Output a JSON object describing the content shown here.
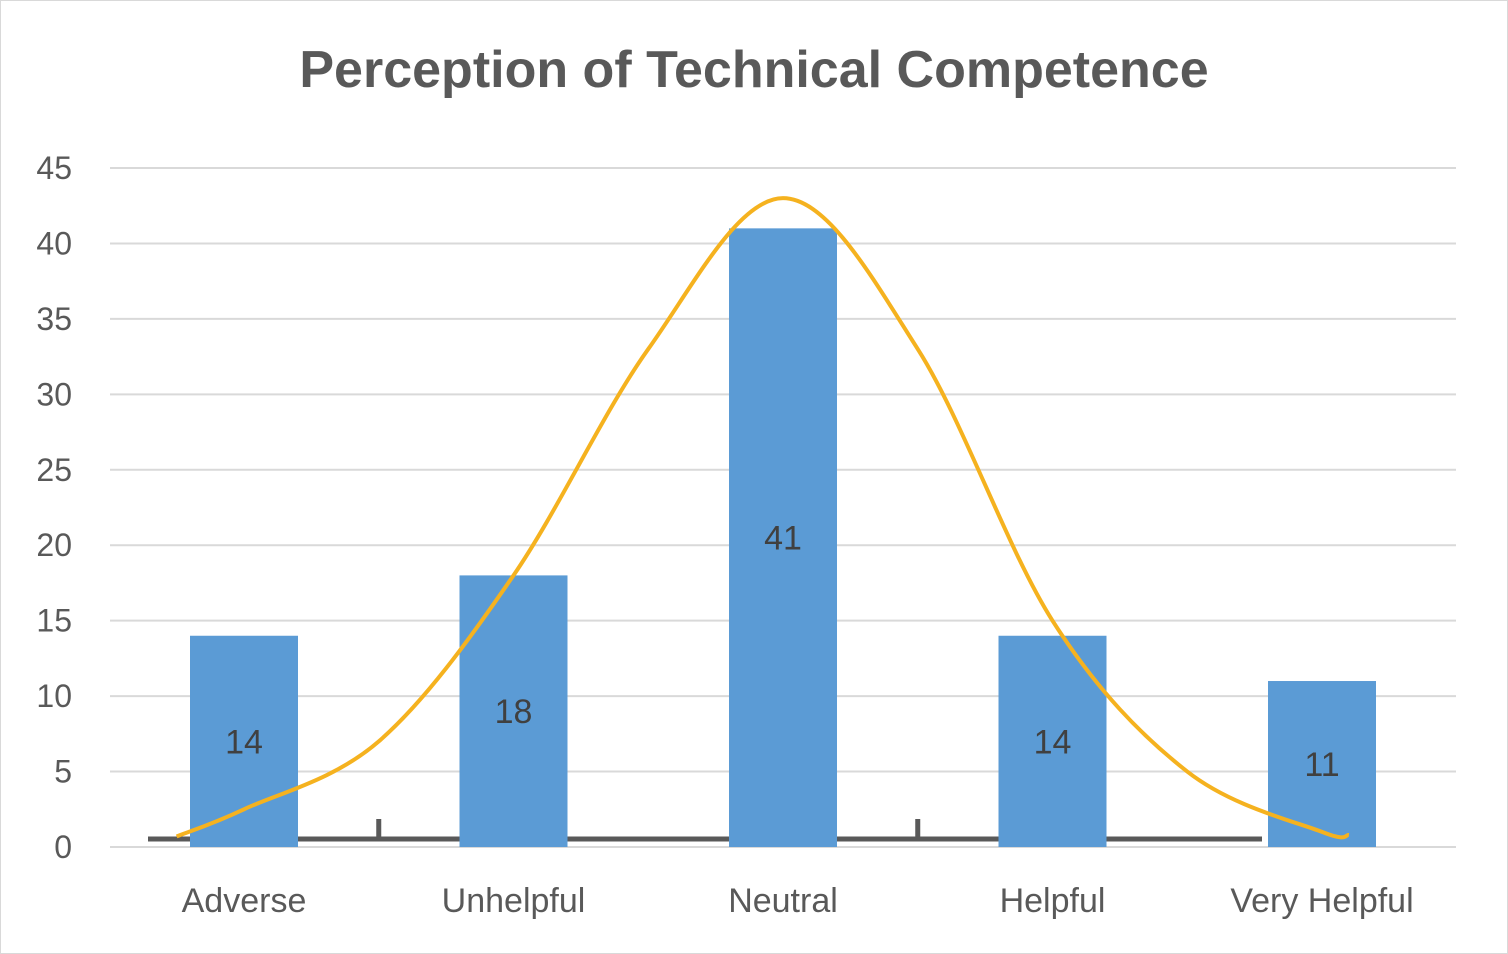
{
  "chart_data": {
    "type": "bar",
    "title": "Perception of Technical Competence",
    "categories": [
      "Adverse",
      "Unhelpful",
      "Neutral",
      "Helpful",
      "Very Helpful"
    ],
    "values": [
      14,
      18,
      41,
      14,
      11
    ],
    "yticks": [
      "0",
      "5",
      "10",
      "15",
      "20",
      "25",
      "30",
      "35",
      "40",
      "45"
    ],
    "ylim": [
      0,
      45
    ],
    "grid": true,
    "legend": "none",
    "bar_color": "#5b9bd5",
    "overlay": {
      "type": "line",
      "style": "smooth",
      "color": "#f5b21f",
      "x": [
        -0.25,
        0,
        0.5,
        1,
        1.5,
        2,
        2.5,
        3,
        3.5,
        4,
        4.1
      ],
      "y": [
        0.7,
        2.5,
        7,
        18,
        33,
        43,
        33,
        15,
        5,
        1,
        0.8
      ]
    }
  }
}
